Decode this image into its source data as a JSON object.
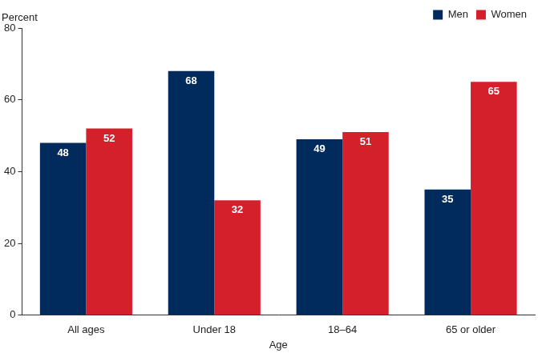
{
  "chart_data": {
    "type": "bar",
    "categories": [
      "All ages",
      "Under 18",
      "18–64",
      "65 or older"
    ],
    "series": [
      {
        "name": "Men",
        "color": "#002b5c",
        "values": [
          48,
          68,
          49,
          35
        ]
      },
      {
        "name": "Women",
        "color": "#d3202b",
        "values": [
          52,
          32,
          51,
          65
        ]
      }
    ],
    "xlabel": "Age",
    "ylabel": "Percent",
    "ylim": [
      0,
      80
    ],
    "yticks": [
      0,
      20,
      40,
      60,
      80
    ],
    "grid": false,
    "legend": "top-right",
    "data_labels": true
  }
}
